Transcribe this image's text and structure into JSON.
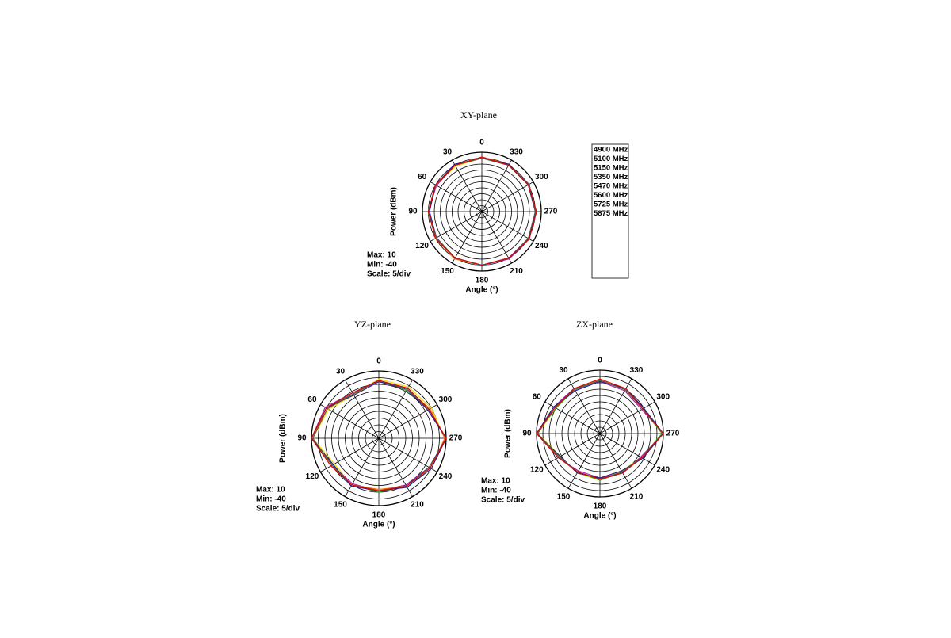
{
  "chart_data": [
    {
      "type": "polar",
      "title": "XY-plane",
      "ylabel": "Power (dBm)",
      "xlabel": "Angle (°)",
      "annotations": [
        "Max: 10",
        "Min: -40",
        "Scale: 5/div"
      ],
      "theta": [
        0,
        30,
        60,
        90,
        120,
        150,
        180,
        210,
        240,
        270,
        300,
        330
      ],
      "thetaticks": [
        0,
        30,
        60,
        90,
        120,
        150,
        180,
        210,
        240,
        270,
        300,
        330
      ],
      "rlim": [
        -40,
        10
      ],
      "rticks": [
        -40,
        -35,
        -30,
        -25,
        -20,
        -15,
        -10,
        -5,
        0,
        5,
        10
      ],
      "legend": true,
      "series": [
        {
          "name": "4900 MHz",
          "color": "#f0dc00",
          "values": [
            5,
            4,
            5,
            5,
            4,
            5,
            5,
            5,
            6,
            5,
            5,
            5
          ]
        },
        {
          "name": "5100 MHz",
          "color": "#3cb4dc",
          "values": [
            5,
            5,
            5,
            4,
            5,
            5,
            6,
            5,
            6,
            6,
            5,
            5
          ]
        },
        {
          "name": "5150 MHz",
          "color": "#a020a0",
          "values": [
            5,
            5,
            4,
            5,
            5,
            5,
            5,
            6,
            6,
            5,
            6,
            5
          ]
        },
        {
          "name": "5350 MHz",
          "color": "#ff6a00",
          "values": [
            6,
            5,
            5,
            5,
            5,
            6,
            5,
            5,
            6,
            6,
            5,
            6
          ]
        },
        {
          "name": "5470 MHz",
          "color": "#2a9a2a",
          "values": [
            5,
            5,
            5,
            5,
            5,
            5,
            5,
            5,
            6,
            5,
            5,
            5
          ]
        },
        {
          "name": "5600 MHz",
          "color": "#2a1a8a",
          "values": [
            5,
            6,
            5,
            4,
            4,
            5,
            5,
            5,
            6,
            5,
            5,
            6
          ]
        },
        {
          "name": "5725 MHz",
          "color": "#555555",
          "values": [
            5,
            5,
            5,
            5,
            4,
            5,
            5,
            5,
            5,
            5,
            6,
            5
          ]
        },
        {
          "name": "5875 MHz",
          "color": "#e00000",
          "values": [
            6,
            5,
            5,
            5,
            5,
            5,
            5,
            5,
            6,
            6,
            5,
            5
          ]
        }
      ]
    },
    {
      "type": "polar",
      "title": "YZ-plane",
      "ylabel": "Power (dBm)",
      "xlabel": "Angle (°)",
      "annotations": [
        "Max: 10",
        "Min: -40",
        "Scale: 5/div"
      ],
      "theta": [
        0,
        30,
        60,
        90,
        120,
        150,
        180,
        210,
        240,
        270,
        300,
        330
      ],
      "thetaticks": [
        0,
        30,
        60,
        90,
        120,
        150,
        180,
        210,
        240,
        270,
        300,
        330
      ],
      "rlim": [
        -40,
        10
      ],
      "rticks": [
        -40,
        -35,
        -30,
        -25,
        -20,
        -15,
        -10,
        -5,
        0,
        5,
        10
      ],
      "legend": false,
      "series": [
        {
          "color": "#f0dc00",
          "values": [
            4,
            -3,
            3,
            9,
            -2,
            0,
            -2,
            1,
            5,
            9,
            5,
            4
          ]
        },
        {
          "color": "#3cb4dc",
          "values": [
            3,
            -2,
            5,
            10,
            0,
            1,
            -1,
            2,
            4,
            10,
            3,
            2
          ]
        },
        {
          "color": "#a020a0",
          "values": [
            2,
            -1,
            6,
            10,
            0,
            -1,
            -1,
            0,
            3,
            10,
            2,
            3
          ]
        },
        {
          "color": "#ff6a00",
          "values": [
            3,
            -2,
            4,
            10,
            1,
            0,
            -2,
            1,
            4,
            9,
            4,
            2
          ]
        },
        {
          "color": "#2a9a2a",
          "values": [
            3,
            -2,
            5,
            10,
            0,
            0,
            0,
            1,
            4,
            10,
            3,
            1
          ]
        },
        {
          "color": "#2a1a8a",
          "values": [
            2,
            -3,
            5,
            10,
            -1,
            1,
            -1,
            2,
            5,
            10,
            2,
            2
          ]
        },
        {
          "color": "#555555",
          "values": [
            3,
            -2,
            4,
            9,
            0,
            0,
            -1,
            1,
            3,
            10,
            3,
            2
          ]
        },
        {
          "color": "#e00000",
          "values": [
            3,
            -1,
            5,
            10,
            1,
            0,
            -1,
            1,
            4,
            10,
            3,
            3
          ]
        }
      ]
    },
    {
      "type": "polar",
      "title": "ZX-plane",
      "ylabel": "Power (dBm)",
      "xlabel": "Angle (°)",
      "annotations": [
        "Max: 10",
        "Min: -40",
        "Scale: 5/div"
      ],
      "theta": [
        0,
        30,
        60,
        90,
        120,
        150,
        180,
        210,
        240,
        270,
        300,
        330
      ],
      "thetaticks": [
        0,
        30,
        60,
        90,
        120,
        150,
        180,
        210,
        240,
        270,
        300,
        330
      ],
      "rlim": [
        -40,
        10
      ],
      "rticks": [
        -40,
        -35,
        -30,
        -25,
        -20,
        -15,
        -10,
        -5,
        0,
        5,
        10
      ],
      "legend": false,
      "series": [
        {
          "color": "#f0dc00",
          "values": [
            3,
            0,
            0,
            9,
            -4,
            -4,
            -3,
            -6,
            -2,
            9,
            -1,
            1
          ]
        },
        {
          "color": "#3cb4dc",
          "values": [
            2,
            -1,
            1,
            10,
            -3,
            -5,
            -4,
            -5,
            -1,
            10,
            0,
            0
          ]
        },
        {
          "color": "#a020a0",
          "values": [
            1,
            1,
            2,
            10,
            -2,
            -6,
            -5,
            -4,
            -3,
            10,
            -2,
            -1
          ]
        },
        {
          "color": "#ff6a00",
          "values": [
            2,
            0,
            1,
            10,
            -3,
            -5,
            -4,
            -5,
            -2,
            10,
            -1,
            0
          ]
        },
        {
          "color": "#2a9a2a",
          "values": [
            2,
            0,
            0,
            10,
            -3,
            -5,
            -3,
            -5,
            -2,
            9,
            -1,
            0
          ]
        },
        {
          "color": "#2a1a8a",
          "values": [
            1,
            -1,
            2,
            10,
            -4,
            -4,
            -5,
            -6,
            -1,
            10,
            0,
            1
          ]
        },
        {
          "color": "#555555",
          "values": [
            2,
            0,
            1,
            9,
            -3,
            -5,
            -4,
            -5,
            -2,
            10,
            -1,
            0
          ]
        },
        {
          "color": "#e00000",
          "values": [
            3,
            1,
            1,
            10,
            -2,
            -5,
            -4,
            -4,
            -2,
            10,
            -1,
            1
          ]
        }
      ]
    }
  ]
}
